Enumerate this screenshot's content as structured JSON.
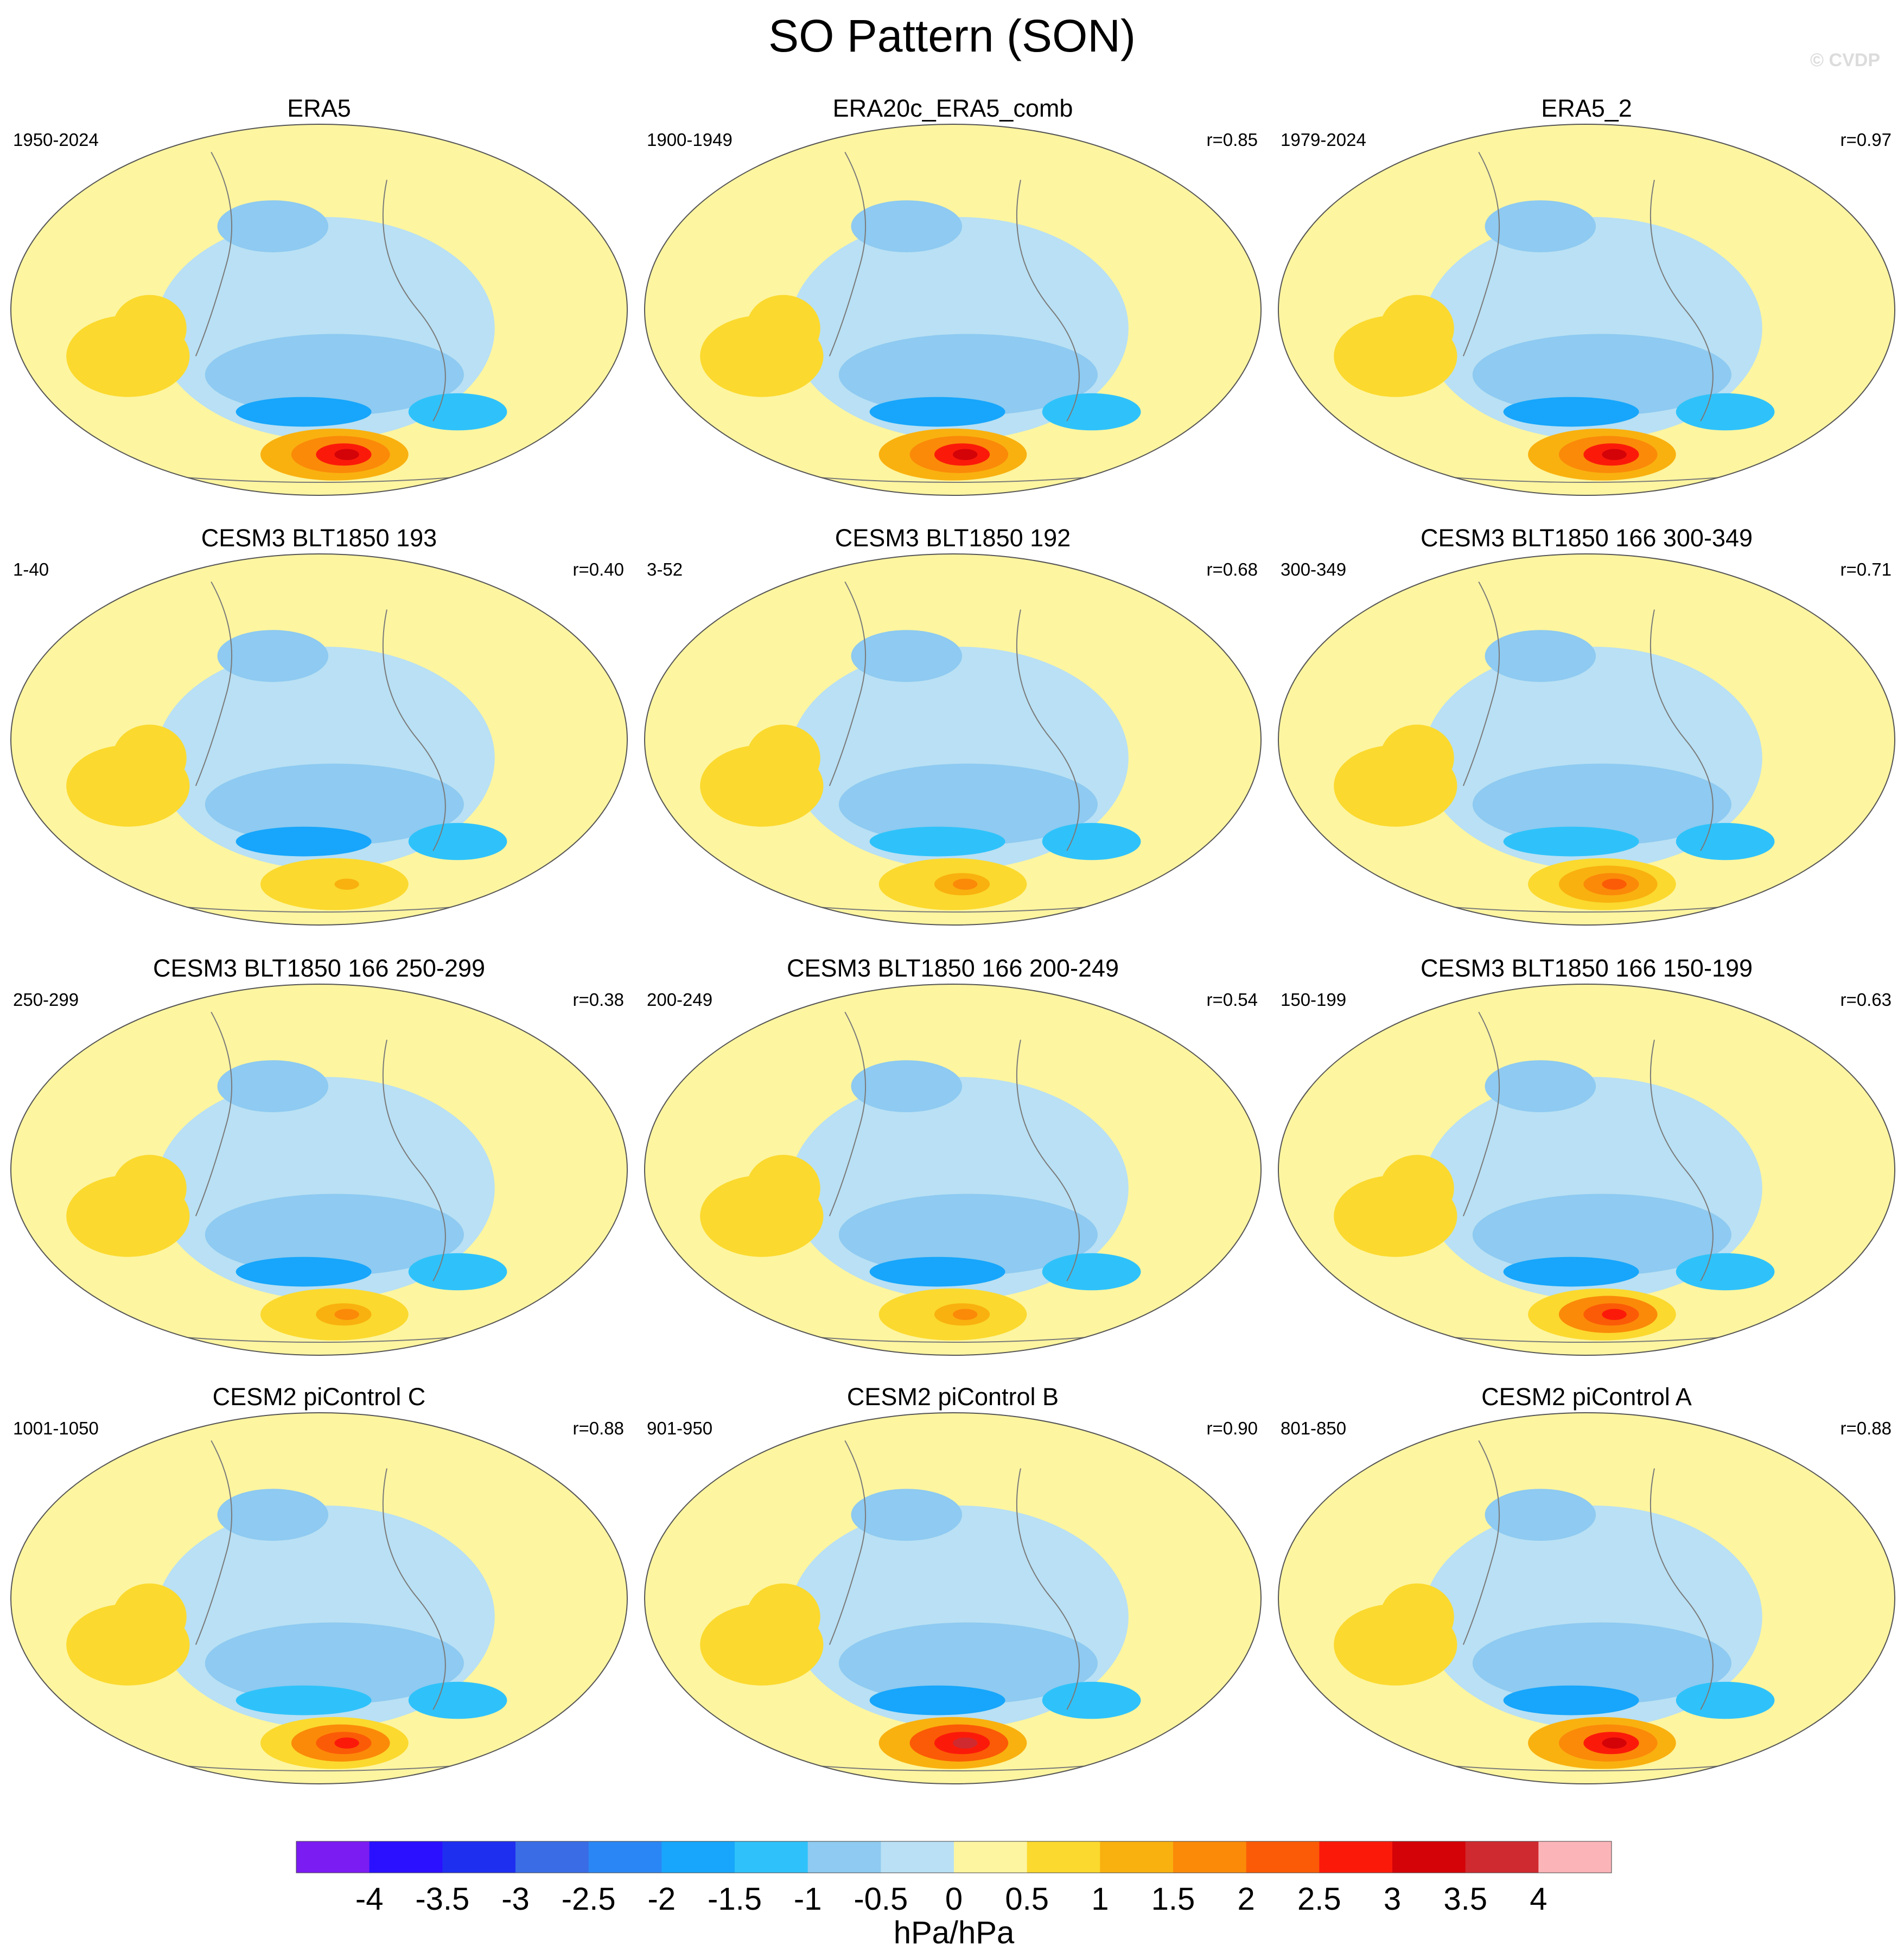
{
  "title": "SO Pattern (SON)",
  "credit": "© CVDP",
  "colorbar": {
    "labels": [
      "-4",
      "-3.5",
      "-3",
      "-2.5",
      "-2",
      "-1.5",
      "-1",
      "-0.5",
      "0",
      "0.5",
      "1",
      "1.5",
      "2",
      "2.5",
      "3",
      "3.5",
      "4"
    ],
    "colors": [
      "#7a1cf2",
      "#2a10ff",
      "#1e2ff0",
      "#3a6ce6",
      "#2b86f5",
      "#17a6fb",
      "#2fc2fa",
      "#8ecaf1",
      "#b9e0f4",
      "#fdf5a0",
      "#fbd92e",
      "#f9b10f",
      "#fb8a09",
      "#fb5b06",
      "#fb1a0a",
      "#d40308",
      "#cf2a2f",
      "#fbb4b8"
    ],
    "units": "hPa/hPa"
  },
  "chart_data": {
    "type": "heatmap",
    "title": "SO Pattern (SON)",
    "units": "hPa/hPa",
    "levels": [
      -4,
      -3.5,
      -3,
      -2.5,
      -2,
      -1.5,
      -1,
      -0.5,
      0,
      0.5,
      1,
      1.5,
      2,
      2.5,
      3,
      3.5,
      4
    ],
    "panels": [
      {
        "title": "ERA5",
        "period": "1950-2024",
        "r": "",
        "peak_max": 3.2,
        "peak_min": -2.0
      },
      {
        "title": "ERA20c_ERA5_comb",
        "period": "1900-1949",
        "r": "r=0.85",
        "peak_max": 3.0,
        "peak_min": -2.0
      },
      {
        "title": "ERA5_2",
        "period": "1979-2024",
        "r": "r=0.97",
        "peak_max": 3.0,
        "peak_min": -2.0
      },
      {
        "title": "CESM3 BLT1850 193",
        "period": "1-40",
        "r": "r=0.40",
        "peak_max": 1.0,
        "peak_min": -2.0
      },
      {
        "title": "CESM3 BLT1850 192",
        "period": "3-52",
        "r": "r=0.68",
        "peak_max": 1.5,
        "peak_min": -1.5
      },
      {
        "title": "CESM3 BLT1850 166 300-349",
        "period": "300-349",
        "r": "r=0.71",
        "peak_max": 2.0,
        "peak_min": -1.5
      },
      {
        "title": "CESM3 BLT1850 166 250-299",
        "period": "250-299",
        "r": "r=0.38",
        "peak_max": 1.5,
        "peak_min": -2.0
      },
      {
        "title": "CESM3 BLT1850 166 200-249",
        "period": "200-249",
        "r": "r=0.54",
        "peak_max": 1.5,
        "peak_min": -2.0
      },
      {
        "title": "CESM3 BLT1850 166 150-199",
        "period": "150-199",
        "r": "r=0.63",
        "peak_max": 2.5,
        "peak_min": -2.0
      },
      {
        "title": "CESM2 piControl C",
        "period": "1001-1050",
        "r": "r=0.88",
        "peak_max": 2.5,
        "peak_min": -1.5
      },
      {
        "title": "CESM2 piControl B",
        "period": "901-950",
        "r": "r=0.90",
        "peak_max": 3.5,
        "peak_min": -2.0
      },
      {
        "title": "CESM2 piControl A",
        "period": "801-850",
        "r": "r=0.88",
        "peak_max": 3.0,
        "peak_min": -2.0
      }
    ]
  }
}
